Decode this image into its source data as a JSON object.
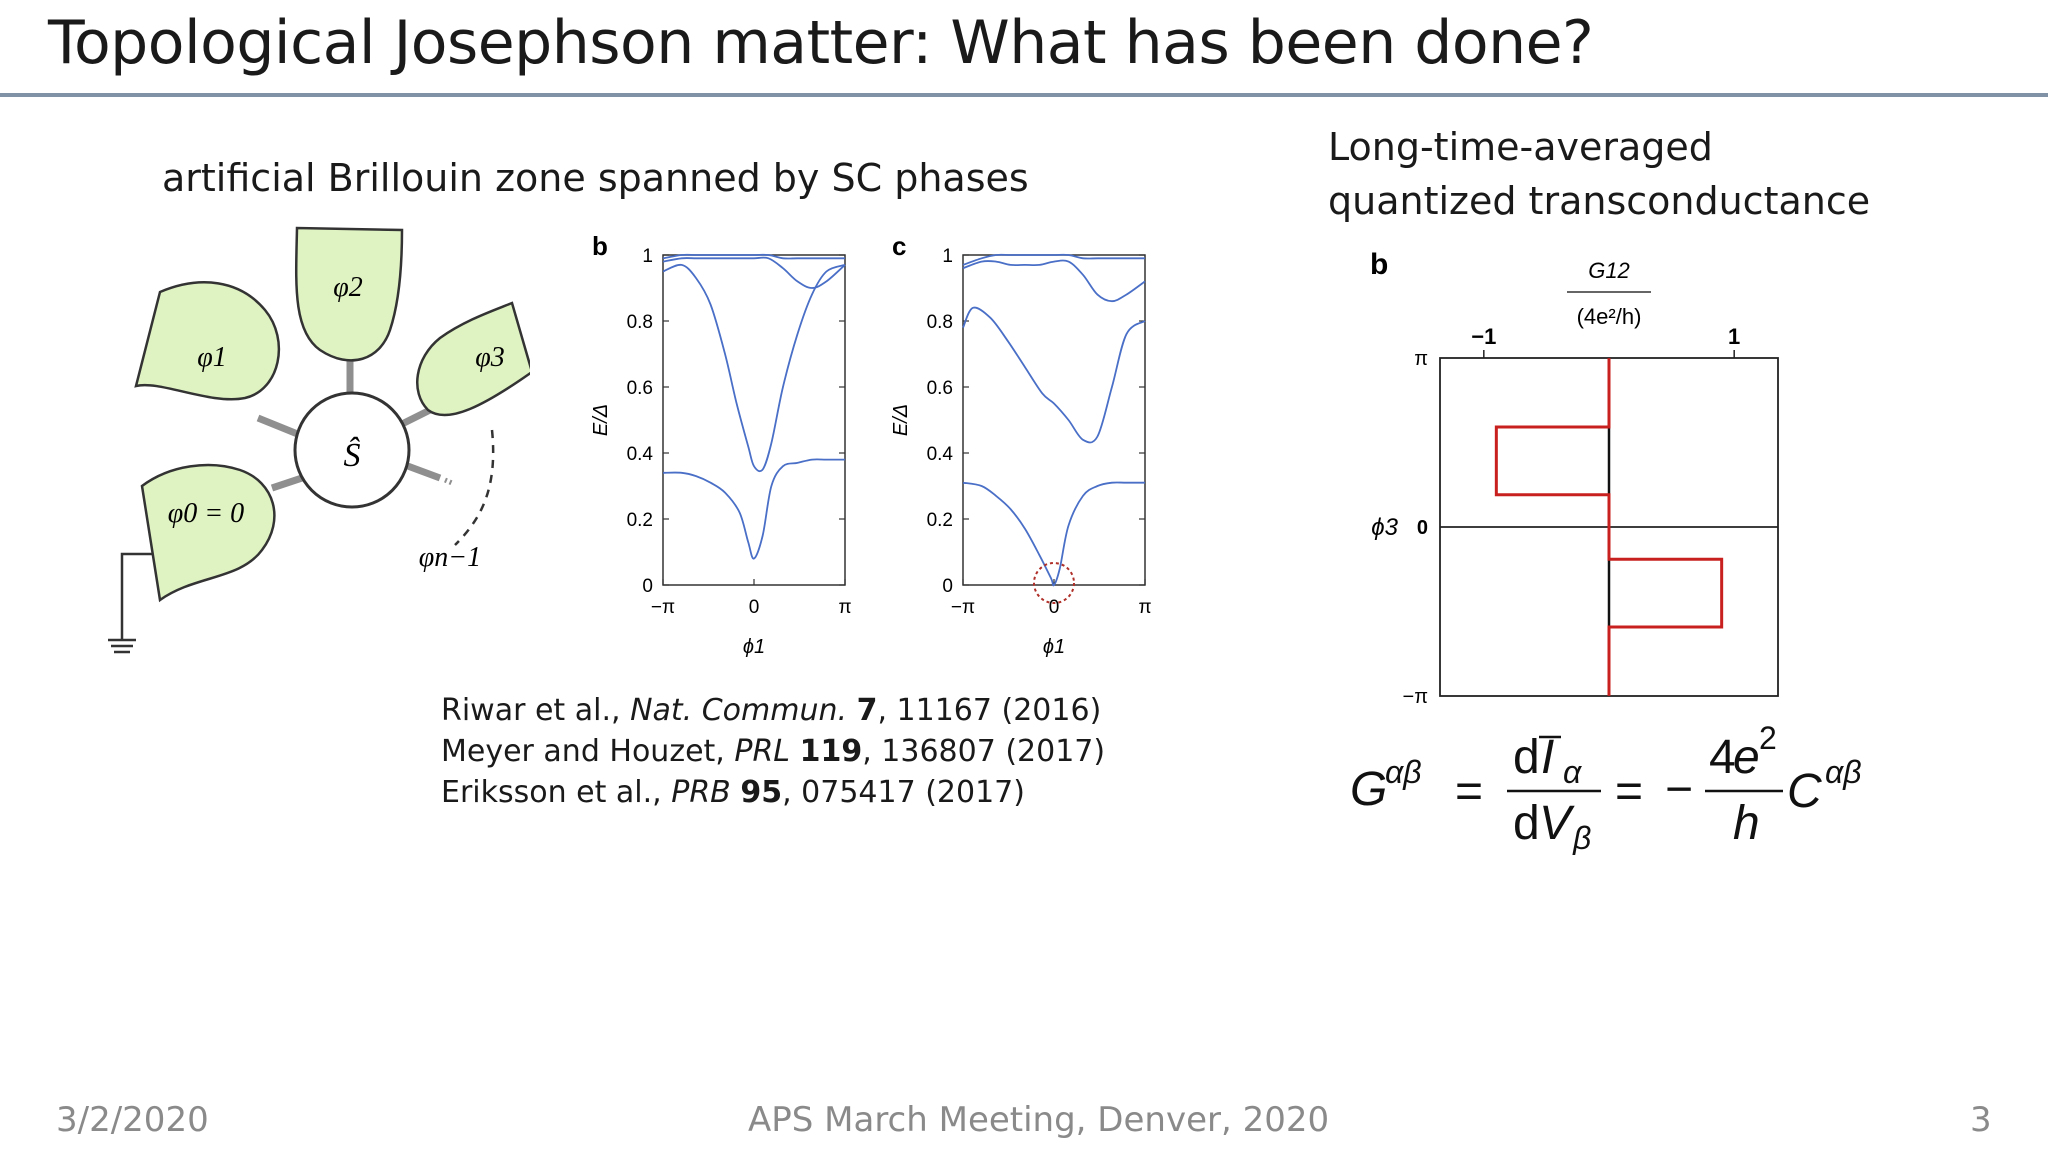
{
  "title": "Topological Josephson matter: What has been done?",
  "left_subtitle": "artificial Brillouin zone spanned by SC phases",
  "right_subtitle": [
    "Long-time-averaged",
    "quantized transconductance"
  ],
  "references": [
    {
      "authors": "Riwar et al., ",
      "journal": "Nat. Commun.",
      "volume": "7",
      "rest": ", 11167 (2016)"
    },
    {
      "authors": "Meyer and Houzet, ",
      "journal": "PRL",
      "volume": "119",
      "rest": ", 136807 (2017)"
    },
    {
      "authors": "Eriksson et al., ",
      "journal": "PRB",
      "volume": "95",
      "rest": ", 075417 (2017)"
    }
  ],
  "footer": {
    "date": "3/2/2020",
    "event": "APS March Meeting, Denver, 2020",
    "page": "3"
  },
  "junction_diagram": {
    "center": "Ŝ",
    "leads": [
      "φ1",
      "φ2",
      "φ3",
      "φ0 = 0",
      "φn−1"
    ],
    "lead_color": "#dff2c2"
  },
  "panel_b_label": "b",
  "panel_c_label": "c",
  "panel_right_label": "b",
  "formula": "G^{αβ} = dĪ_α/dV_β = −(4e²/h) C^{αβ}",
  "chart_data": [
    {
      "type": "line",
      "panel": "b",
      "xlabel": "ϕ1",
      "ylabel": "E/Δ",
      "xticks": [
        "−π",
        "0",
        "π"
      ],
      "yticks": [
        "0",
        "0.2",
        "0.4",
        "0.6",
        "0.8",
        "1"
      ],
      "xlim": [
        -3.1416,
        3.1416
      ],
      "ylim": [
        0,
        1
      ],
      "line_color": "#4a6fc7",
      "series": [
        {
          "x": [
            -3.14,
            -2.5,
            -2,
            -1.5,
            -1,
            -0.5,
            -0.2,
            0,
            0.3,
            0.6,
            1,
            1.5,
            2,
            2.5,
            3.14
          ],
          "values": [
            0.34,
            0.34,
            0.33,
            0.31,
            0.28,
            0.22,
            0.13,
            0.08,
            0.15,
            0.3,
            0.36,
            0.37,
            0.38,
            0.38,
            0.38
          ]
        },
        {
          "x": [
            -3.14,
            -2.5,
            -2,
            -1.5,
            -1,
            -0.6,
            -0.2,
            0,
            0.3,
            0.6,
            1,
            1.5,
            2,
            2.5,
            3.14
          ],
          "values": [
            0.95,
            0.97,
            0.93,
            0.85,
            0.7,
            0.55,
            0.42,
            0.36,
            0.35,
            0.43,
            0.6,
            0.76,
            0.88,
            0.95,
            0.97
          ]
        },
        {
          "x": [
            -3.14,
            -2.5,
            -2,
            -1.5,
            -1,
            -0.5,
            0,
            0.5,
            1,
            1.5,
            2,
            2.5,
            3.14
          ],
          "values": [
            0.98,
            0.99,
            0.99,
            0.99,
            0.99,
            0.99,
            0.99,
            0.99,
            0.96,
            0.92,
            0.9,
            0.92,
            0.97
          ]
        },
        {
          "x": [
            -3.14,
            -2.5,
            -2,
            -1.5,
            -1,
            -0.5,
            0,
            0.5,
            1,
            1.5,
            2,
            2.5,
            3.14
          ],
          "values": [
            0.99,
            1.0,
            1.0,
            1.0,
            1.0,
            1.0,
            1.0,
            1.0,
            0.99,
            0.99,
            0.99,
            0.99,
            0.99
          ]
        }
      ]
    },
    {
      "type": "line",
      "panel": "c",
      "xlabel": "ϕ1",
      "ylabel": "E/Δ",
      "xticks": [
        "−π",
        "0",
        "π"
      ],
      "yticks": [
        "0",
        "0.2",
        "0.4",
        "0.6",
        "0.8",
        "1"
      ],
      "xlim": [
        -3.1416,
        3.1416
      ],
      "ylim": [
        0,
        1
      ],
      "line_color": "#4a6fc7",
      "annotation": "dotted circle marking gap closing at ϕ1 ≈ 0",
      "series": [
        {
          "x": [
            -3.14,
            -2.5,
            -2,
            -1.5,
            -1,
            -0.5,
            -0.1,
            0,
            0.2,
            0.5,
            1,
            1.5,
            2,
            2.5,
            3.14
          ],
          "values": [
            0.31,
            0.3,
            0.27,
            0.23,
            0.17,
            0.09,
            0.02,
            0.0,
            0.05,
            0.18,
            0.27,
            0.3,
            0.31,
            0.31,
            0.31
          ]
        },
        {
          "x": [
            -3.14,
            -2.8,
            -2.2,
            -1.6,
            -1,
            -0.4,
            0,
            0.5,
            1,
            1.5,
            2,
            2.5,
            3.14
          ],
          "values": [
            0.78,
            0.84,
            0.81,
            0.74,
            0.66,
            0.58,
            0.55,
            0.5,
            0.44,
            0.45,
            0.6,
            0.76,
            0.8
          ]
        },
        {
          "x": [
            -3.14,
            -2.5,
            -2,
            -1.5,
            -1,
            -0.5,
            0,
            0.5,
            1,
            1.5,
            2,
            2.5,
            3.14
          ],
          "values": [
            0.96,
            0.98,
            0.98,
            0.97,
            0.97,
            0.97,
            0.98,
            0.98,
            0.94,
            0.88,
            0.86,
            0.88,
            0.92
          ]
        },
        {
          "x": [
            -3.14,
            -2.5,
            -2,
            -1.5,
            -1,
            -0.5,
            0,
            0.5,
            1,
            1.5,
            2,
            2.5,
            3.14
          ],
          "values": [
            0.97,
            0.99,
            1.0,
            1.0,
            1.0,
            1.0,
            1.0,
            1.0,
            0.99,
            0.99,
            0.99,
            0.99,
            0.99
          ]
        }
      ]
    },
    {
      "type": "line",
      "panel": "b (transconductance)",
      "xlabel": "G12 / (4e²/h)",
      "ylabel": "ϕ3",
      "xticks": [
        "−1",
        "1"
      ],
      "yticks": [
        "−π",
        "0",
        "π"
      ],
      "xlim": [
        -1.35,
        1.35
      ],
      "ylim": [
        -3.1416,
        3.1416
      ],
      "line_color": "#c8201e",
      "series": [
        {
          "x": [
            0,
            0,
            -0.9,
            -0.9,
            0,
            0,
            0.9,
            0.9,
            0,
            0
          ],
          "values": [
            3.14,
            1.86,
            1.86,
            0.6,
            0.6,
            -0.6,
            -0.6,
            -1.86,
            -1.86,
            -3.14
          ]
        }
      ]
    }
  ]
}
